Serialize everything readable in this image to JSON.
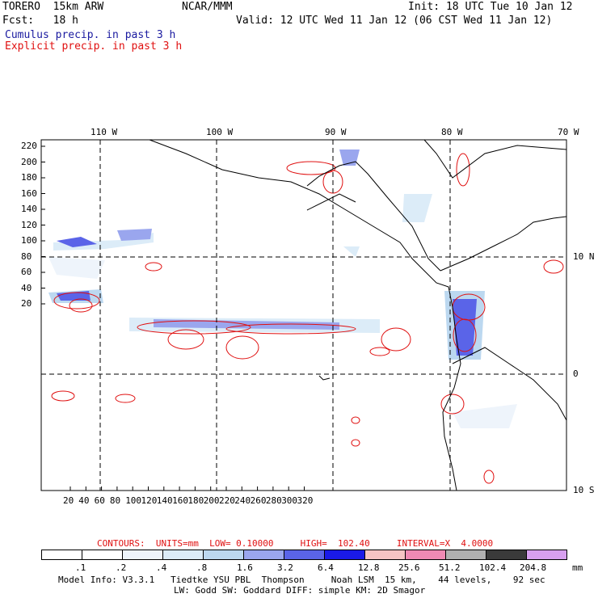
{
  "header": {
    "model": "TORERO  15km ARW",
    "org": "NCAR/MMM",
    "init": "Init: 18 UTC Tue 10 Jan 12",
    "fcst": "Fcst:   18 h",
    "valid": "Valid: 12 UTC Wed 11 Jan 12 (06 CST Wed 11 Jan 12)",
    "cumulus": "Cumulus precip. in past 3 h",
    "explicit": "Explicit precip. in past 3 h",
    "cumulus_color": "#1a1aa0",
    "explicit_color": "#e01010"
  },
  "map": {
    "lon_labels": [
      "110 W",
      "100 W",
      "90 W",
      "80 W",
      "70 W"
    ],
    "lat_labels": [
      "10 N",
      "0",
      "10 S"
    ],
    "y_ticks": [
      "220",
      "200",
      "180",
      "160",
      "140",
      "120",
      "100",
      "80",
      "60",
      "40",
      "20"
    ],
    "x_ticks": [
      "20",
      "40",
      "60",
      "80",
      "100",
      "120",
      "140",
      "160",
      "180",
      "200",
      "220",
      "240",
      "260",
      "280",
      "300",
      "320"
    ]
  },
  "contours": {
    "text": "CONTOURS:  UNITS=mm  LOW= 0.10000     HIGH=  102.40     INTERVAL=X  4.0000"
  },
  "legend": {
    "labels": [
      ".1",
      ".2",
      ".4",
      ".8",
      "1.6",
      "3.2",
      "6.4",
      "12.8",
      "25.6",
      "51.2",
      "102.4",
      "204.8"
    ],
    "unit": "mm",
    "colors": [
      "#ffffff",
      "#ffffff",
      "#eef4fb",
      "#dcecf8",
      "#bcd8f0",
      "#9aa6ee",
      "#5a64e8",
      "#1a1ae8",
      "#f6c4c4",
      "#f08ab4",
      "#b0b0b0",
      "#3a3a3a",
      "#d8a0f0"
    ]
  },
  "footer": {
    "line1": "Model Info: V3.3.1   Tiedtke YSU PBL  Thompson     Noah LSM  15 km,    44 levels,    92 sec",
    "line2": "LW: Godd SW: Goddard DIFF: simple KM: 2D Smagor"
  }
}
